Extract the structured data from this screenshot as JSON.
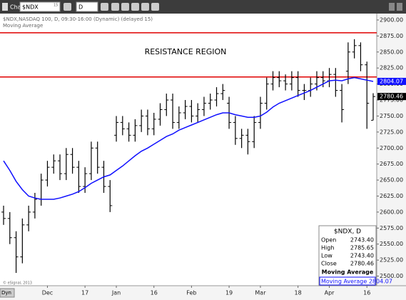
{
  "toolbar": {
    "window": "Chart",
    "symbol": "$NDX",
    "delay": "15",
    "interval": "D",
    "dyn": "Dyn"
  },
  "chart_data": {
    "type": "ohlc",
    "subtitle": "$NDX,NASDAQ 100, D, 09:30-16:00 (Dynamic) (delayed 15)",
    "copyright": "© eSignal, 2013",
    "annotation": "RESISTANCE REGION",
    "categories": [
      null,
      null,
      null,
      null,
      null,
      null,
      null,
      "Dec",
      null,
      null,
      null,
      null,
      null,
      "17",
      null,
      null,
      null,
      null,
      "Jan",
      null,
      null,
      null,
      null,
      null,
      "16",
      null,
      null,
      null,
      null,
      null,
      "Feb",
      null,
      null,
      null,
      null,
      null,
      "19",
      null,
      null,
      null,
      null,
      "Mar",
      null,
      null,
      null,
      null,
      null,
      "18",
      null,
      null,
      null,
      null,
      "Apr",
      null,
      null,
      null,
      null,
      null,
      "16",
      null
    ],
    "series": [
      {
        "name": "$NDX",
        "type": "ohlc",
        "color": "#000000",
        "open": [
          2600,
          2590,
          2560,
          2530,
          2580,
          2600,
          2620,
          2650,
          2670,
          2680,
          2660,
          2690,
          2670,
          2640,
          2660,
          2700,
          2670,
          2640,
          2720,
          2740,
          2730,
          2720,
          2735,
          2750,
          2730,
          2745,
          2760,
          2775,
          2740,
          2755,
          2765,
          2750,
          2760,
          2770,
          2775,
          2785,
          2770,
          2740,
          2715,
          2720,
          2710,
          2740,
          2770,
          2800,
          2810,
          2805,
          2800,
          2810,
          2790,
          2790,
          2800,
          2810,
          2805,
          2815,
          2790,
          2820,
          2850,
          2860,
          2830,
          2743.4
        ],
        "high": [
          2610,
          2600,
          2570,
          2590,
          2610,
          2630,
          2660,
          2680,
          2690,
          2690,
          2700,
          2700,
          2680,
          2670,
          2710,
          2710,
          2680,
          2650,
          2750,
          2750,
          2740,
          2745,
          2760,
          2760,
          2755,
          2770,
          2785,
          2785,
          2765,
          2775,
          2775,
          2770,
          2780,
          2785,
          2795,
          2800,
          2780,
          2750,
          2730,
          2730,
          2750,
          2780,
          2810,
          2820,
          2820,
          2815,
          2820,
          2820,
          2800,
          2810,
          2820,
          2820,
          2825,
          2825,
          2800,
          2865,
          2870,
          2865,
          2835,
          2785.65
        ],
        "low": [
          2580,
          2550,
          2505,
          2520,
          2570,
          2590,
          2610,
          2640,
          2660,
          2650,
          2650,
          2660,
          2630,
          2630,
          2650,
          2660,
          2630,
          2600,
          2710,
          2720,
          2710,
          2710,
          2725,
          2720,
          2720,
          2735,
          2750,
          2730,
          2730,
          2745,
          2740,
          2740,
          2750,
          2760,
          2765,
          2775,
          2730,
          2705,
          2700,
          2690,
          2700,
          2730,
          2760,
          2790,
          2795,
          2790,
          2790,
          2780,
          2775,
          2780,
          2790,
          2795,
          2795,
          2780,
          2740,
          2800,
          2840,
          2820,
          2730,
          2743.4
        ],
        "close": [
          2590,
          2560,
          2530,
          2580,
          2600,
          2620,
          2650,
          2670,
          2680,
          2660,
          2690,
          2670,
          2640,
          2660,
          2700,
          2670,
          2640,
          2610,
          2740,
          2730,
          2720,
          2735,
          2750,
          2730,
          2745,
          2760,
          2775,
          2740,
          2755,
          2765,
          2750,
          2760,
          2770,
          2775,
          2785,
          2790,
          2740,
          2715,
          2720,
          2710,
          2740,
          2770,
          2800,
          2810,
          2805,
          2800,
          2810,
          2790,
          2790,
          2800,
          2810,
          2805,
          2815,
          2790,
          2760,
          2850,
          2860,
          2830,
          2770,
          2780.46
        ]
      },
      {
        "name": "Moving Average",
        "type": "line",
        "color": "#1010ff",
        "values": [
          2680,
          2665,
          2648,
          2635,
          2625,
          2622,
          2620,
          2620,
          2620,
          2622,
          2625,
          2628,
          2632,
          2638,
          2645,
          2650,
          2655,
          2658,
          2665,
          2672,
          2680,
          2688,
          2695,
          2700,
          2706,
          2712,
          2718,
          2722,
          2728,
          2732,
          2736,
          2740,
          2744,
          2748,
          2752,
          2755,
          2755,
          2752,
          2750,
          2748,
          2748,
          2750,
          2756,
          2764,
          2770,
          2774,
          2778,
          2782,
          2786,
          2790,
          2795,
          2800,
          2805,
          2806,
          2805,
          2808,
          2810,
          2808,
          2806,
          2804.07
        ]
      }
    ],
    "reference_lines": [
      {
        "value": 2880,
        "color": "#e00000"
      },
      {
        "value": 2811,
        "color": "#e00000"
      }
    ],
    "price_flags": [
      {
        "value": 2804.07,
        "label": "2804.07",
        "color": "#1010ff"
      },
      {
        "value": 2780.46,
        "label": "2780.46",
        "color": "#000000"
      }
    ],
    "ylim": [
      2485,
      2910
    ],
    "yticks": [
      {
        "value": 2500,
        "label": "2500.00"
      },
      {
        "value": 2525,
        "label": "2525.00"
      },
      {
        "value": 2550,
        "label": "2550.00"
      },
      {
        "value": 2575,
        "label": "2575.00"
      },
      {
        "value": 2600,
        "label": "2600.00"
      },
      {
        "value": 2625,
        "label": "2625.00"
      },
      {
        "value": 2650,
        "label": "2650.00"
      },
      {
        "value": 2675,
        "label": "2675.00"
      },
      {
        "value": 2700,
        "label": "2700.00"
      },
      {
        "value": 2725,
        "label": "2725.00"
      },
      {
        "value": 2750,
        "label": "2750.00"
      },
      {
        "value": 2775,
        "label": "2775.00"
      },
      {
        "value": 2800,
        "label": "2800.00"
      },
      {
        "value": 2825,
        "label": "2825.00"
      },
      {
        "value": 2850,
        "label": "2850.00"
      },
      {
        "value": 2875,
        "label": "2875.00"
      },
      {
        "value": 2900,
        "label": "2900.00"
      }
    ],
    "info_box": {
      "title": "$NDX, D",
      "rows": [
        {
          "label": "Open",
          "value": "2743.40"
        },
        {
          "label": "High",
          "value": "2785.65"
        },
        {
          "label": "Low",
          "value": "2743.40"
        },
        {
          "label": "Close",
          "value": "2780.46"
        }
      ],
      "indicator": "Moving Average",
      "indicator_row": "Moving Average 2804.07"
    }
  }
}
